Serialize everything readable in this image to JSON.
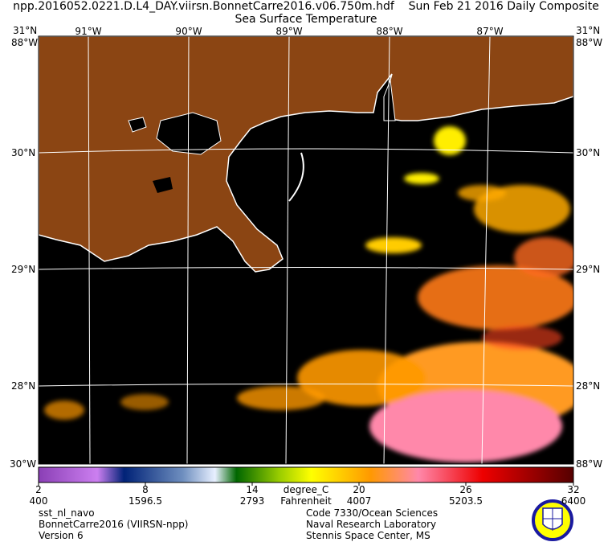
{
  "header": {
    "file": "npp.2016052.0221.D.L4_DAY.viirsn.BonnetCarre2016.v06.750m.hdf",
    "date": "Sun Feb 21 2016 Daily Composite",
    "product": "Sea Surface Temperature"
  },
  "map": {
    "lat_labels": [
      "31°N",
      "30°N",
      "29°N",
      "28°N"
    ],
    "lon_labels": [
      "91°W",
      "90°W",
      "89°W",
      "88°W",
      "87°W"
    ],
    "corner_labels": {
      "top_left": "31°N",
      "top_right": "31°N",
      "left_lon": "88°W",
      "right_lon": "88°W",
      "bottom_left": "30°W",
      "bottom_right": "88°W"
    },
    "colors": {
      "land": "#8b4513",
      "no_data": "#000000",
      "coast": "#ffffff",
      "grid": "#ffffff"
    }
  },
  "colorbar": {
    "celsius_ticks": [
      "2",
      "8",
      "14",
      "20",
      "26",
      "32"
    ],
    "unit_c": "degree_C",
    "fahrenheit_ticks": [
      "400",
      "1596.5",
      "2793",
      "4007",
      "5203.5",
      "6400"
    ],
    "unit_f": "Fahrenheit",
    "stops": [
      "#8a3fb5",
      "#cc7ff0",
      "#002277",
      "#6f8fbf",
      "#e8f0ff",
      "#006600",
      "#99cc00",
      "#ffff00",
      "#ff9900",
      "#ff88aa",
      "#ee0000",
      "#550000"
    ]
  },
  "footer": {
    "left": [
      "sst_nl_navo",
      "BonnetCarre2016 (VIIRSN-npp)",
      "Version 6"
    ],
    "center": [
      "Code 7330/Ocean Sciences",
      "Naval Research Laboratory",
      "Stennis Space Center, MS"
    ],
    "logo": "Naval Research Laboratory seal"
  }
}
